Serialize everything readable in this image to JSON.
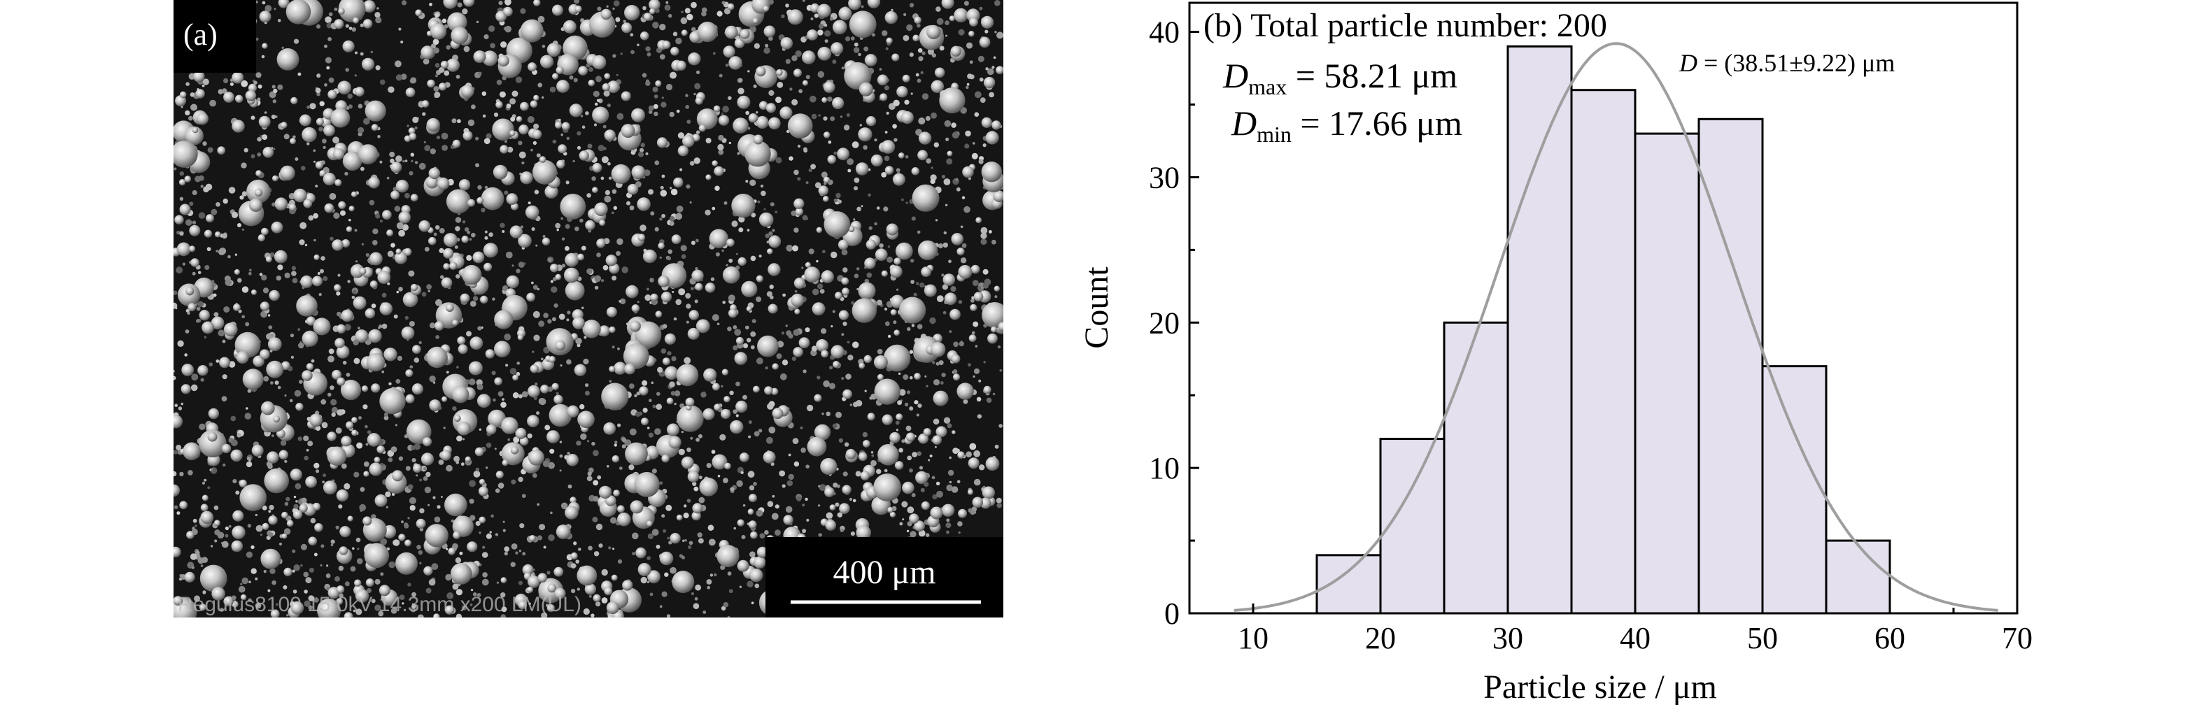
{
  "panel_a": {
    "label": "(a)",
    "scale_bar_label": "400 μm",
    "footer_text": "Regulus8100 15.0kV 14.3mm x200 LM(UL)"
  },
  "chart_data": {
    "type": "bar",
    "title": "(b) Total particle number: 200",
    "xlabel": "Particle size / μm",
    "ylabel": "Count",
    "xlim": [
      5,
      70
    ],
    "ylim": [
      0,
      42
    ],
    "x_ticks": [
      10,
      20,
      30,
      40,
      50,
      60,
      70
    ],
    "y_ticks": [
      0,
      10,
      20,
      30,
      40
    ],
    "bins": [
      [
        15,
        20
      ],
      [
        20,
        25
      ],
      [
        25,
        30
      ],
      [
        30,
        35
      ],
      [
        35,
        40
      ],
      [
        40,
        45
      ],
      [
        45,
        50
      ],
      [
        50,
        55
      ],
      [
        55,
        60
      ]
    ],
    "values": [
      4,
      12,
      20,
      39,
      36,
      33,
      34,
      17,
      5
    ],
    "bar_fill": "#e4e0ee",
    "curve_color": "#9e9e9e",
    "fit_curve": {
      "type": "gaussian",
      "mean": 38.51,
      "std": 9.22,
      "peak": 39.2,
      "x_range": [
        8.5,
        68.5
      ]
    },
    "annotations": {
      "dmax": {
        "symbol": "D",
        "sub": "max",
        "text": " = 58.21 μm"
      },
      "dmin": {
        "symbol": "D",
        "sub": "min",
        "text": " = 17.66 μm"
      },
      "dmean": {
        "symbol": "D",
        "text": " = (38.51±9.22) μm"
      }
    },
    "grid": false
  }
}
